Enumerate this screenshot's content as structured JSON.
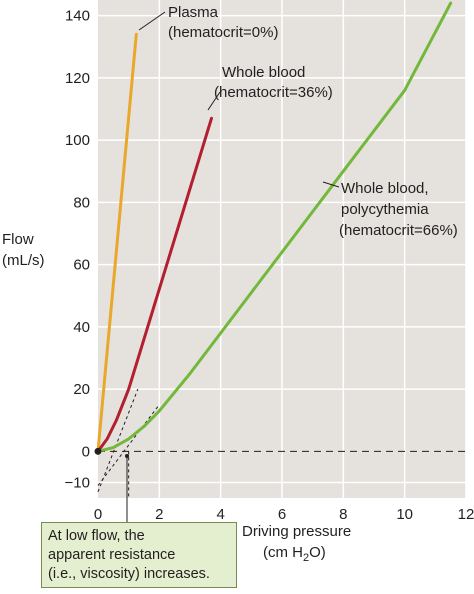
{
  "chart_data": {
    "type": "line",
    "ylabel_lines": [
      "Flow",
      "(mL/s)"
    ],
    "xlabel_line1": "Driving pressure",
    "xlabel_unit_pre": "(cm H",
    "xlabel_unit_sub": "2",
    "xlabel_unit_post": "O)",
    "xlim": [
      0,
      12
    ],
    "ylim": [
      -15,
      145
    ],
    "x_ticks": [
      "0",
      "2",
      "4",
      "6",
      "8",
      "10",
      "12"
    ],
    "y_ticks": [
      "−10",
      "0",
      "20",
      "40",
      "60",
      "80",
      "100",
      "120",
      "140"
    ],
    "y_tick_values": [
      -10,
      0,
      20,
      40,
      60,
      80,
      100,
      120,
      140
    ],
    "grid": true,
    "series": [
      {
        "name_lines": [
          "Plasma",
          "(hematocrit=0%)"
        ],
        "color": "#e9a82b",
        "x": [
          0,
          1.25
        ],
        "y": [
          0,
          134
        ]
      },
      {
        "name_lines": [
          "Whole blood",
          "(hematocrit=36%)"
        ],
        "color": "#b21f2f",
        "x": [
          0,
          0.3,
          0.6,
          1.0,
          3.7
        ],
        "y": [
          0,
          4,
          10,
          20,
          107
        ]
      },
      {
        "name_lines": [
          "Whole blood,",
          "polycythemia",
          "(hematocrit=66%)"
        ],
        "color": "#72b83b",
        "x": [
          0,
          0.5,
          1.0,
          1.5,
          2.0,
          2.5,
          3.0,
          4.0,
          6.0,
          8.0,
          10.0,
          11.5
        ],
        "y": [
          0,
          1.2,
          4,
          8,
          13,
          19,
          25,
          38,
          64,
          90,
          116,
          144
        ]
      }
    ],
    "dashed_lines": [
      {
        "x": [
          0,
          12
        ],
        "y": [
          0,
          0
        ]
      },
      {
        "x": [
          0,
          1.3
        ],
        "y": [
          -13,
          20
        ]
      },
      {
        "x": [
          0,
          2.0
        ],
        "y": [
          -11,
          15
        ]
      },
      {
        "x": [
          1.0,
          1.0
        ],
        "y": [
          0,
          -15
        ]
      }
    ],
    "annotation_lines": [
      "At low flow, the",
      "apparent resistance",
      "(i.e., viscosity) increases."
    ],
    "colors": {
      "grid_bg": "#e5e1dd",
      "grid_line": "#ffffff",
      "text": "#231f20",
      "note_bg": "#e4efcf"
    }
  }
}
